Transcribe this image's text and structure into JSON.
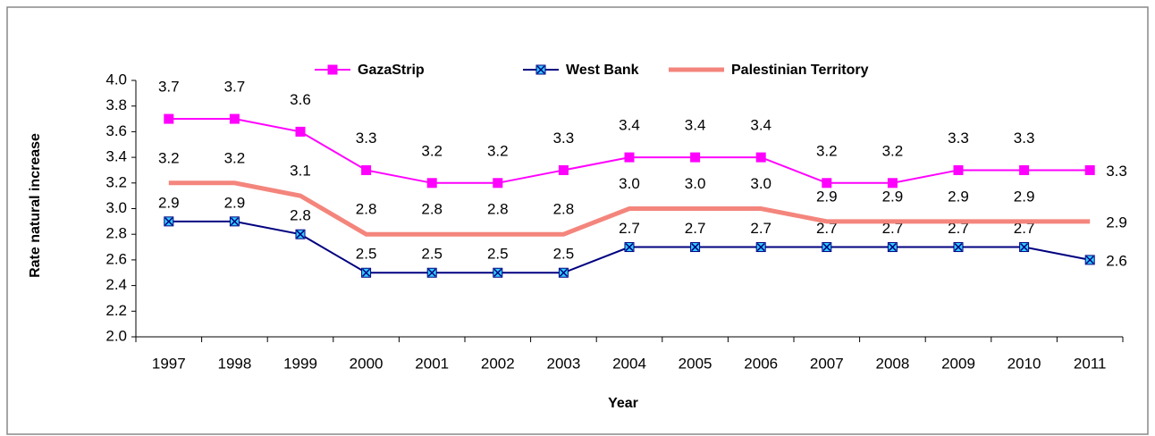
{
  "chart_data": {
    "type": "line",
    "y_label": "Rate natural increase",
    "x_label": "Year",
    "categories": [
      "1997",
      "1998",
      "1999",
      "2000",
      "2001",
      "2002",
      "2003",
      "2004",
      "2005",
      "2006",
      "2007",
      "2008",
      "2009",
      "2010",
      "2011"
    ],
    "series": [
      {
        "name": "GazaStrip",
        "color": "#ff00ff",
        "marker": "square",
        "values": [
          3.7,
          3.7,
          3.6,
          3.3,
          3.2,
          3.2,
          3.3,
          3.4,
          3.4,
          3.4,
          3.2,
          3.2,
          3.3,
          3.3,
          3.3
        ]
      },
      {
        "name": "West Bank",
        "color": "#000080",
        "marker": "x-square",
        "values": [
          2.9,
          2.9,
          2.8,
          2.5,
          2.5,
          2.5,
          2.5,
          2.7,
          2.7,
          2.7,
          2.7,
          2.7,
          2.7,
          2.7,
          2.6
        ]
      },
      {
        "name": "Palestinian Territory",
        "color": "#f4857c",
        "marker": "none",
        "values": [
          3.2,
          3.2,
          3.1,
          2.8,
          2.8,
          2.8,
          2.8,
          3,
          3,
          3,
          2.9,
          2.9,
          2.9,
          2.9,
          2.9
        ],
        "value_labels": [
          "3.2",
          "3.2",
          "3.1",
          "2.8",
          "2.8",
          "2.8",
          "2.8",
          "3.0",
          "3.0",
          "3.0",
          "2.9",
          "2.9",
          "2.9",
          "2.9",
          "2.9"
        ]
      }
    ],
    "ylim": [
      2,
      4
    ],
    "yticks": [
      {
        "value": 2,
        "label": "2.0"
      },
      2.2,
      2.4,
      2.6,
      2.8,
      {
        "value": 3,
        "label": "3.0"
      },
      3.2,
      3.4,
      3.6,
      3.8,
      {
        "value": 4,
        "label": "4.0"
      }
    ],
    "grid": false
  }
}
